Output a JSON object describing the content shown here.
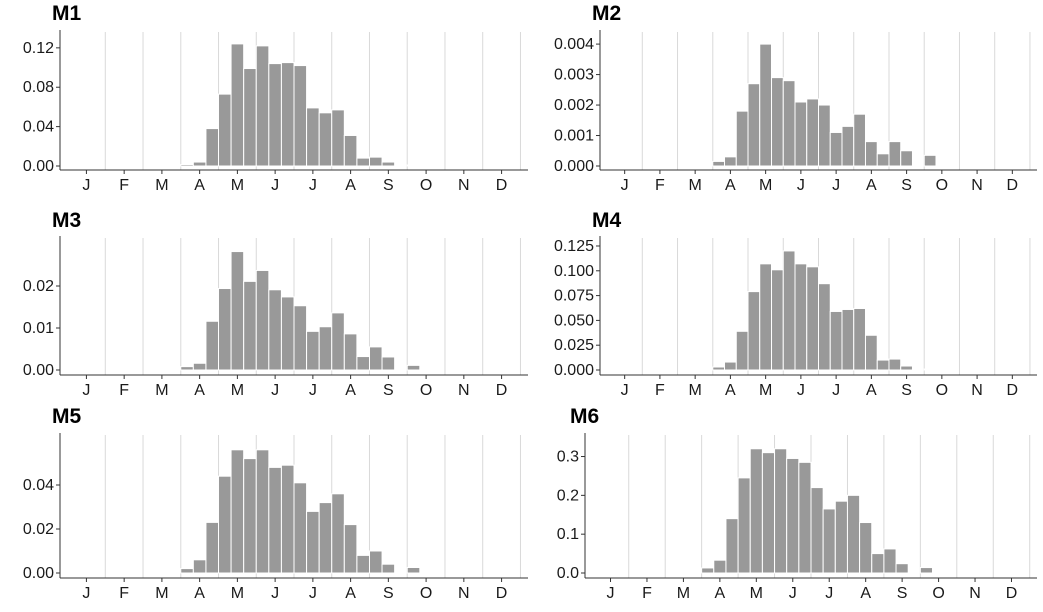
{
  "chart_data": [
    {
      "type": "bar",
      "title": "M1",
      "month_labels": [
        "J",
        "F",
        "M",
        "A",
        "M",
        "J",
        "J",
        "A",
        "S",
        "O",
        "N",
        "D"
      ],
      "bar_month_starts": [
        3.0,
        3.333,
        3.667,
        4.0,
        4.333,
        4.667,
        5.0,
        5.333,
        5.667,
        6.0,
        6.333,
        6.667,
        7.0,
        7.333,
        7.667,
        8.0,
        8.333,
        8.667,
        9.0
      ],
      "values": [
        0.0015,
        0.004,
        0.038,
        0.073,
        0.124,
        0.099,
        0.122,
        0.104,
        0.105,
        0.102,
        0.059,
        0.054,
        0.057,
        0.031,
        0.008,
        0.009,
        0.004,
        0.0,
        0.001
      ],
      "yticks": [
        0.0,
        0.04,
        0.08,
        0.12
      ],
      "ytick_labels": [
        "0.00",
        "0.04",
        "0.08",
        "0.12"
      ],
      "ylim": [
        0,
        0.13
      ],
      "grid": "vertical month boundaries",
      "xlabel": "",
      "ylabel": ""
    },
    {
      "type": "bar",
      "title": "M2",
      "month_labels": [
        "J",
        "F",
        "M",
        "A",
        "M",
        "J",
        "J",
        "A",
        "S",
        "O",
        "N",
        "D"
      ],
      "bar_month_starts": [
        3.0,
        3.333,
        3.667,
        4.0,
        4.333,
        4.667,
        5.0,
        5.333,
        5.667,
        6.0,
        6.333,
        6.667,
        7.0,
        7.333,
        7.667,
        8.0,
        8.333,
        8.667,
        9.0
      ],
      "values": [
        0.00015,
        0.0003,
        0.0018,
        0.0027,
        0.004,
        0.0029,
        0.0028,
        0.0021,
        0.0022,
        0.002,
        0.0011,
        0.0013,
        0.0017,
        0.0008,
        0.0004,
        0.0008,
        0.0005,
        0.0,
        0.00035
      ],
      "yticks": [
        0.0,
        0.001,
        0.002,
        0.003,
        0.004
      ],
      "ytick_labels": [
        "0.000",
        "0.001",
        "0.002",
        "0.003",
        "0.004"
      ],
      "ylim": [
        0,
        0.0042
      ],
      "grid": "vertical month boundaries",
      "xlabel": "",
      "ylabel": ""
    },
    {
      "type": "bar",
      "title": "M3",
      "month_labels": [
        "J",
        "F",
        "M",
        "A",
        "M",
        "J",
        "J",
        "A",
        "S",
        "O",
        "N",
        "D"
      ],
      "bar_month_starts": [
        3.0,
        3.333,
        3.667,
        4.0,
        4.333,
        4.667,
        5.0,
        5.333,
        5.667,
        6.0,
        6.333,
        6.667,
        7.0,
        7.333,
        7.667,
        8.0,
        8.333,
        8.667,
        9.0
      ],
      "values": [
        0.0008,
        0.0016,
        0.0116,
        0.0194,
        0.0282,
        0.0211,
        0.0237,
        0.0191,
        0.0174,
        0.0153,
        0.0092,
        0.0103,
        0.0136,
        0.0086,
        0.0032,
        0.0055,
        0.0031,
        0.0,
        0.0011
      ],
      "yticks": [
        0.0,
        0.01,
        0.02
      ],
      "ytick_labels": [
        "0.00",
        "0.01",
        "0.02"
      ],
      "ylim": [
        0,
        0.03
      ],
      "grid": "vertical month boundaries",
      "xlabel": "",
      "ylabel": ""
    },
    {
      "type": "bar",
      "title": "M4",
      "month_labels": [
        "J",
        "F",
        "M",
        "A",
        "M",
        "J",
        "J",
        "A",
        "S",
        "O",
        "N",
        "D"
      ],
      "bar_month_starts": [
        3.0,
        3.333,
        3.667,
        4.0,
        4.333,
        4.667,
        5.0,
        5.333,
        5.667,
        6.0,
        6.333,
        6.667,
        7.0,
        7.333,
        7.667,
        8.0,
        8.333,
        8.667,
        9.0
      ],
      "values": [
        0.003,
        0.008,
        0.039,
        0.079,
        0.107,
        0.101,
        0.12,
        0.107,
        0.104,
        0.087,
        0.059,
        0.061,
        0.062,
        0.035,
        0.01,
        0.011,
        0.004,
        0.0,
        0.001
      ],
      "yticks": [
        0.0,
        0.025,
        0.05,
        0.075,
        0.1,
        0.125
      ],
      "ytick_labels": [
        "0.000",
        "0.025",
        "0.050",
        "0.075",
        "0.100",
        "0.125"
      ],
      "ylim": [
        0,
        0.127
      ],
      "grid": "vertical month boundaries",
      "xlabel": "",
      "ylabel": ""
    },
    {
      "type": "bar",
      "title": "M5",
      "month_labels": [
        "J",
        "F",
        "M",
        "A",
        "M",
        "J",
        "J",
        "A",
        "S",
        "O",
        "N",
        "D"
      ],
      "bar_month_starts": [
        3.0,
        3.333,
        3.667,
        4.0,
        4.333,
        4.667,
        5.0,
        5.333,
        5.667,
        6.0,
        6.333,
        6.667,
        7.0,
        7.333,
        7.667,
        8.0,
        8.333,
        8.667,
        9.0
      ],
      "values": [
        0.002,
        0.006,
        0.023,
        0.044,
        0.056,
        0.052,
        0.056,
        0.048,
        0.049,
        0.041,
        0.028,
        0.032,
        0.036,
        0.022,
        0.008,
        0.01,
        0.004,
        0.0,
        0.0025
      ],
      "yticks": [
        0.0,
        0.02,
        0.04
      ],
      "ytick_labels": [
        "0.00",
        "0.02",
        "0.04"
      ],
      "ylim": [
        0,
        0.06
      ],
      "grid": "vertical month boundaries",
      "xlabel": "",
      "ylabel": ""
    },
    {
      "type": "bar",
      "title": "M6",
      "month_labels": [
        "J",
        "F",
        "M",
        "A",
        "M",
        "J",
        "J",
        "A",
        "S",
        "O",
        "N",
        "D"
      ],
      "bar_month_starts": [
        3.0,
        3.333,
        3.667,
        4.0,
        4.333,
        4.667,
        5.0,
        5.333,
        5.667,
        6.0,
        6.333,
        6.667,
        7.0,
        7.333,
        7.667,
        8.0,
        8.333,
        8.667,
        9.0
      ],
      "values": [
        0.013,
        0.033,
        0.14,
        0.245,
        0.32,
        0.31,
        0.32,
        0.295,
        0.285,
        0.22,
        0.165,
        0.185,
        0.2,
        0.13,
        0.05,
        0.062,
        0.024,
        0.0,
        0.014
      ],
      "yticks": [
        0.0,
        0.1,
        0.2,
        0.3
      ],
      "ytick_labels": [
        "0.0",
        "0.1",
        "0.2",
        "0.3"
      ],
      "ylim": [
        0,
        0.34
      ],
      "grid": "vertical month boundaries",
      "xlabel": "",
      "ylabel": ""
    }
  ],
  "colors": {
    "bar": "#999999",
    "grid": "#d9d9d9",
    "axis": "#333333"
  }
}
